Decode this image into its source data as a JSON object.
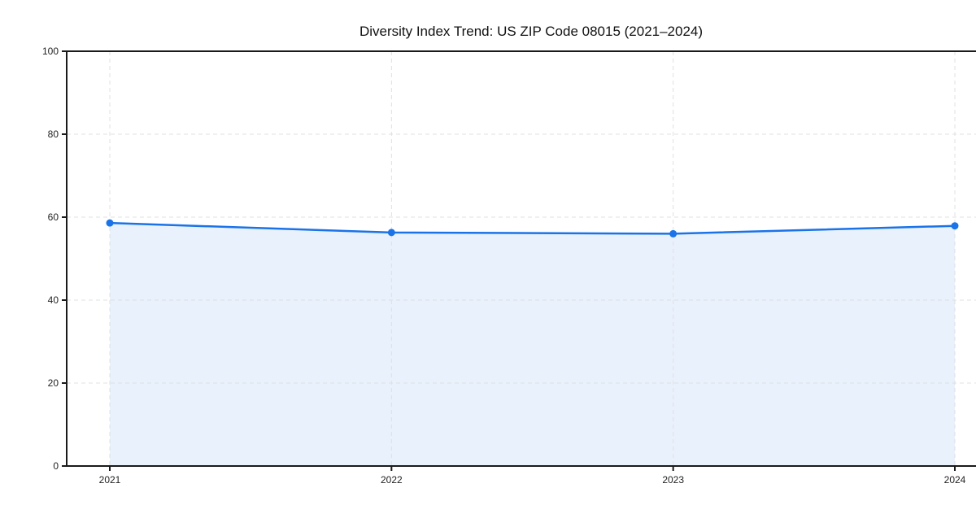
{
  "figure": {
    "title": "Diversity Index Trend: US ZIP Code 08015 (2021–2024)"
  },
  "chart_data": {
    "type": "area",
    "title": "Diversity Index Trend: US ZIP Code 08015 (2021–2024)",
    "categories": [
      "2021",
      "2022",
      "2023",
      "2024"
    ],
    "values": [
      58.6,
      56.3,
      56.0,
      57.9
    ],
    "series_name": "Diversity Index",
    "xlabel": "",
    "ylabel": "",
    "ylim": [
      0,
      100
    ],
    "yticks": [
      0,
      20,
      40,
      60,
      80,
      100
    ],
    "ytick_labels": [
      "0",
      "20",
      "40",
      "60",
      "80",
      "100"
    ],
    "grid": "dashed",
    "legend": "none",
    "marker": "circle",
    "colors": {
      "line": "#1a73e8",
      "marker": "#1a73e8",
      "fill": "#e9f1fd",
      "grid": "#e0e0e0",
      "axis": "#1a1a1a",
      "tick_label": "#222222",
      "title": "#111111",
      "background": "#ffffff"
    }
  }
}
